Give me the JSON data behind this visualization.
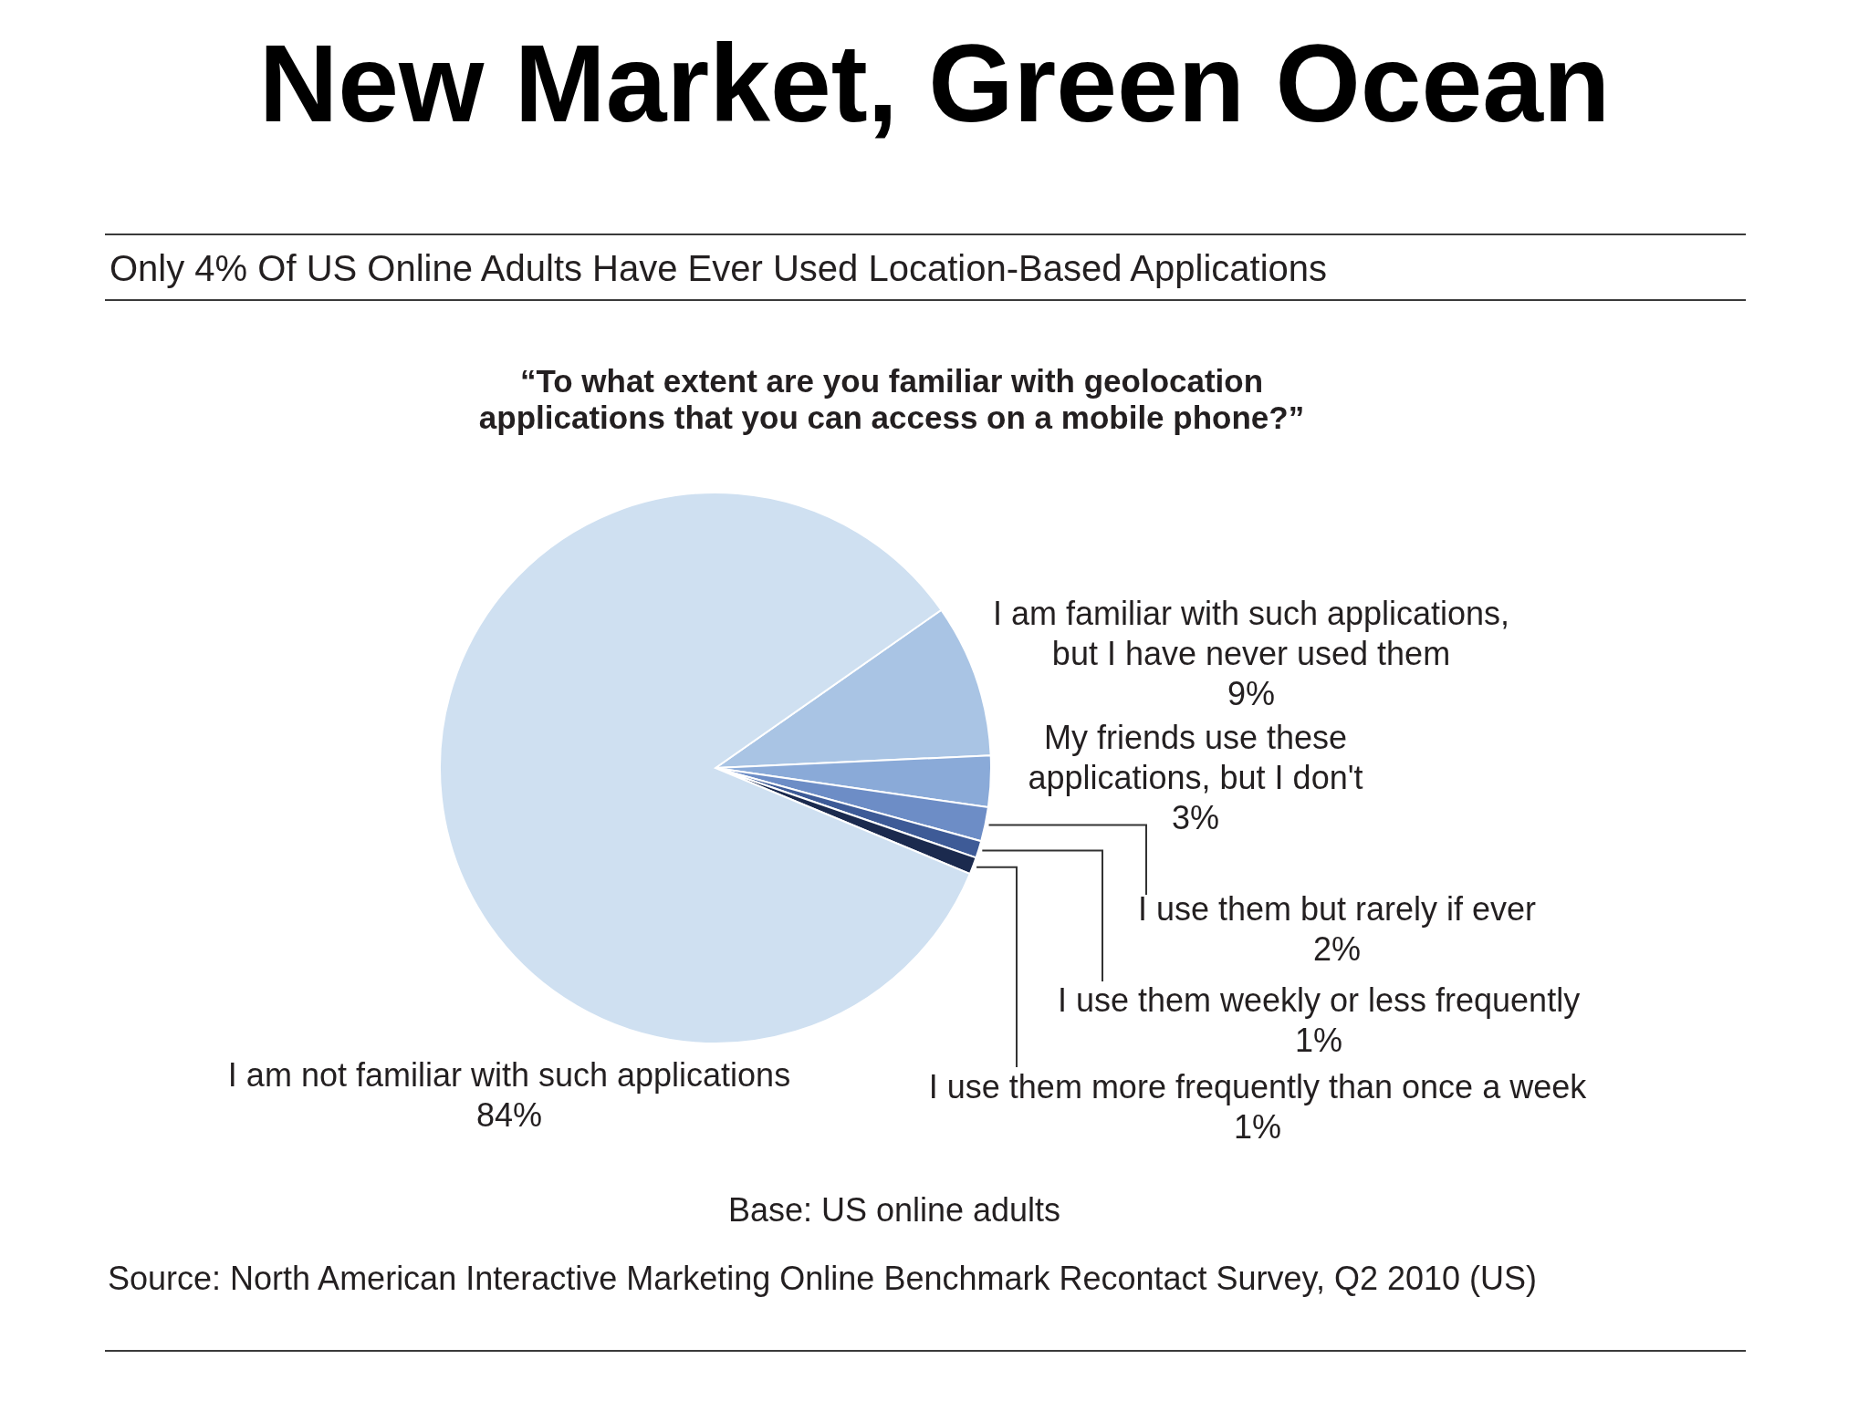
{
  "chart_data": {
    "type": "pie",
    "title": "New Market, Green Ocean",
    "subtitle": "Only 4% Of US Online Adults Have Ever Used Location-Based Applications",
    "annotations": [
      "“To what extent are you familiar with geolocation applications that you can access on a mobile phone?”",
      "Base: US online adults",
      "Source: North American Interactive Marketing Online Benchmark Recontact Survey, Q2 2010 (US)"
    ],
    "categories": [
      "I am familiar with such applications, but I have never used them",
      "My friends use these applications, but I don't",
      "I use them but rarely if ever",
      "I use them weekly or less frequently",
      "I use them more frequently than once a week",
      "I am not familiar with such applications"
    ],
    "values": [
      9,
      3,
      2,
      1,
      1,
      84
    ],
    "value_labels": [
      "9%",
      "3%",
      "2%",
      "1%",
      "1%",
      "84%"
    ],
    "colors": [
      "#a9c4e4",
      "#8aaad8",
      "#6d8dc6",
      "#3e5b97",
      "#1b2a4e",
      "#cfe0f1"
    ]
  }
}
